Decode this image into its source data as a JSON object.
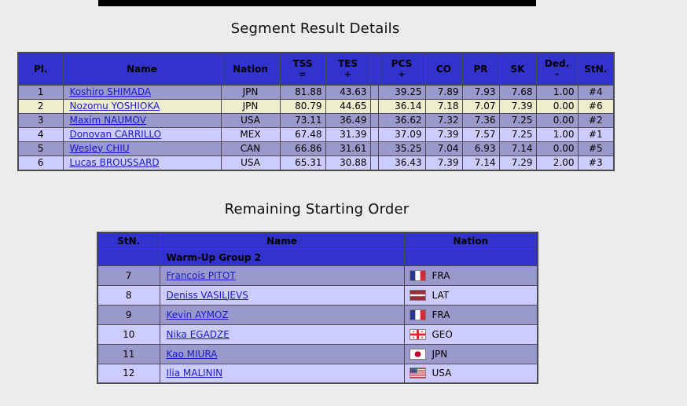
{
  "colors": {
    "page_bg": "#ececec",
    "header_bg": "#3232cd",
    "row_dark": "#9999cc",
    "row_light": "#ccccff",
    "row_highlight": "#eeeecc",
    "link": "#1a1acc",
    "border": "#4a4a52"
  },
  "results": {
    "title": "Segment Result Details",
    "columns": {
      "pl": "Pl.",
      "name": "Name",
      "nation": "Nation",
      "tss": "TSS",
      "tss_sub": "=",
      "tes": "TES",
      "tes_sub": "+",
      "pcs": "PCS",
      "pcs_sub": "+",
      "co": "CO",
      "pr": "PR",
      "sk": "SK",
      "ded": "Ded.",
      "ded_sub": "-",
      "stn": "StN."
    },
    "rows": [
      {
        "pl": "1",
        "name": "Koshiro SHIMADA",
        "nation": "JPN",
        "tss": "81.88",
        "tes": "43.63",
        "pcs": "39.25",
        "co": "7.89",
        "pr": "7.93",
        "sk": "7.68",
        "ded": "1.00",
        "stn": "#4",
        "highlight": false
      },
      {
        "pl": "2",
        "name": "Nozomu YOSHIOKA",
        "nation": "JPN",
        "tss": "80.79",
        "tes": "44.65",
        "pcs": "36.14",
        "co": "7.18",
        "pr": "7.07",
        "sk": "7.39",
        "ded": "0.00",
        "stn": "#6",
        "highlight": true
      },
      {
        "pl": "3",
        "name": "Maxim NAUMOV",
        "nation": "USA",
        "tss": "73.11",
        "tes": "36.49",
        "pcs": "36.62",
        "co": "7.32",
        "pr": "7.36",
        "sk": "7.25",
        "ded": "0.00",
        "stn": "#2",
        "highlight": false
      },
      {
        "pl": "4",
        "name": "Donovan CARRILLO",
        "nation": "MEX",
        "tss": "67.48",
        "tes": "31.39",
        "pcs": "37.09",
        "co": "7.39",
        "pr": "7.57",
        "sk": "7.25",
        "ded": "1.00",
        "stn": "#1",
        "highlight": false
      },
      {
        "pl": "5",
        "name": "Wesley CHIU",
        "nation": "CAN",
        "tss": "66.86",
        "tes": "31.61",
        "pcs": "35.25",
        "co": "7.04",
        "pr": "6.93",
        "sk": "7.14",
        "ded": "0.00",
        "stn": "#5",
        "highlight": false
      },
      {
        "pl": "6",
        "name": "Lucas BROUSSARD",
        "nation": "USA",
        "tss": "65.31",
        "tes": "30.88",
        "pcs": "36.43",
        "co": "7.39",
        "pr": "7.14",
        "sk": "7.29",
        "ded": "2.00",
        "stn": "#3",
        "highlight": false
      }
    ]
  },
  "starting_order": {
    "title": "Remaining Starting Order",
    "columns": {
      "stn": "StN.",
      "name": "Name",
      "nation": "Nation"
    },
    "group_label": "Warm-Up Group 2",
    "rows": [
      {
        "stn": "7",
        "name": "Francois PITOT",
        "nation": "FRA",
        "flag_icon": "france-flag-icon"
      },
      {
        "stn": "8",
        "name": "Deniss VASILJEVS",
        "nation": "LAT",
        "flag_icon": "latvia-flag-icon"
      },
      {
        "stn": "9",
        "name": "Kevin AYMOZ",
        "nation": "FRA",
        "flag_icon": "france-flag-icon"
      },
      {
        "stn": "10",
        "name": "Nika EGADZE",
        "nation": "GEO",
        "flag_icon": "georgia-flag-icon"
      },
      {
        "stn": "11",
        "name": "Kao MIURA",
        "nation": "JPN",
        "flag_icon": "japan-flag-icon"
      },
      {
        "stn": "12",
        "name": "Ilia MALININ",
        "nation": "USA",
        "flag_icon": "usa-flag-icon"
      }
    ]
  }
}
